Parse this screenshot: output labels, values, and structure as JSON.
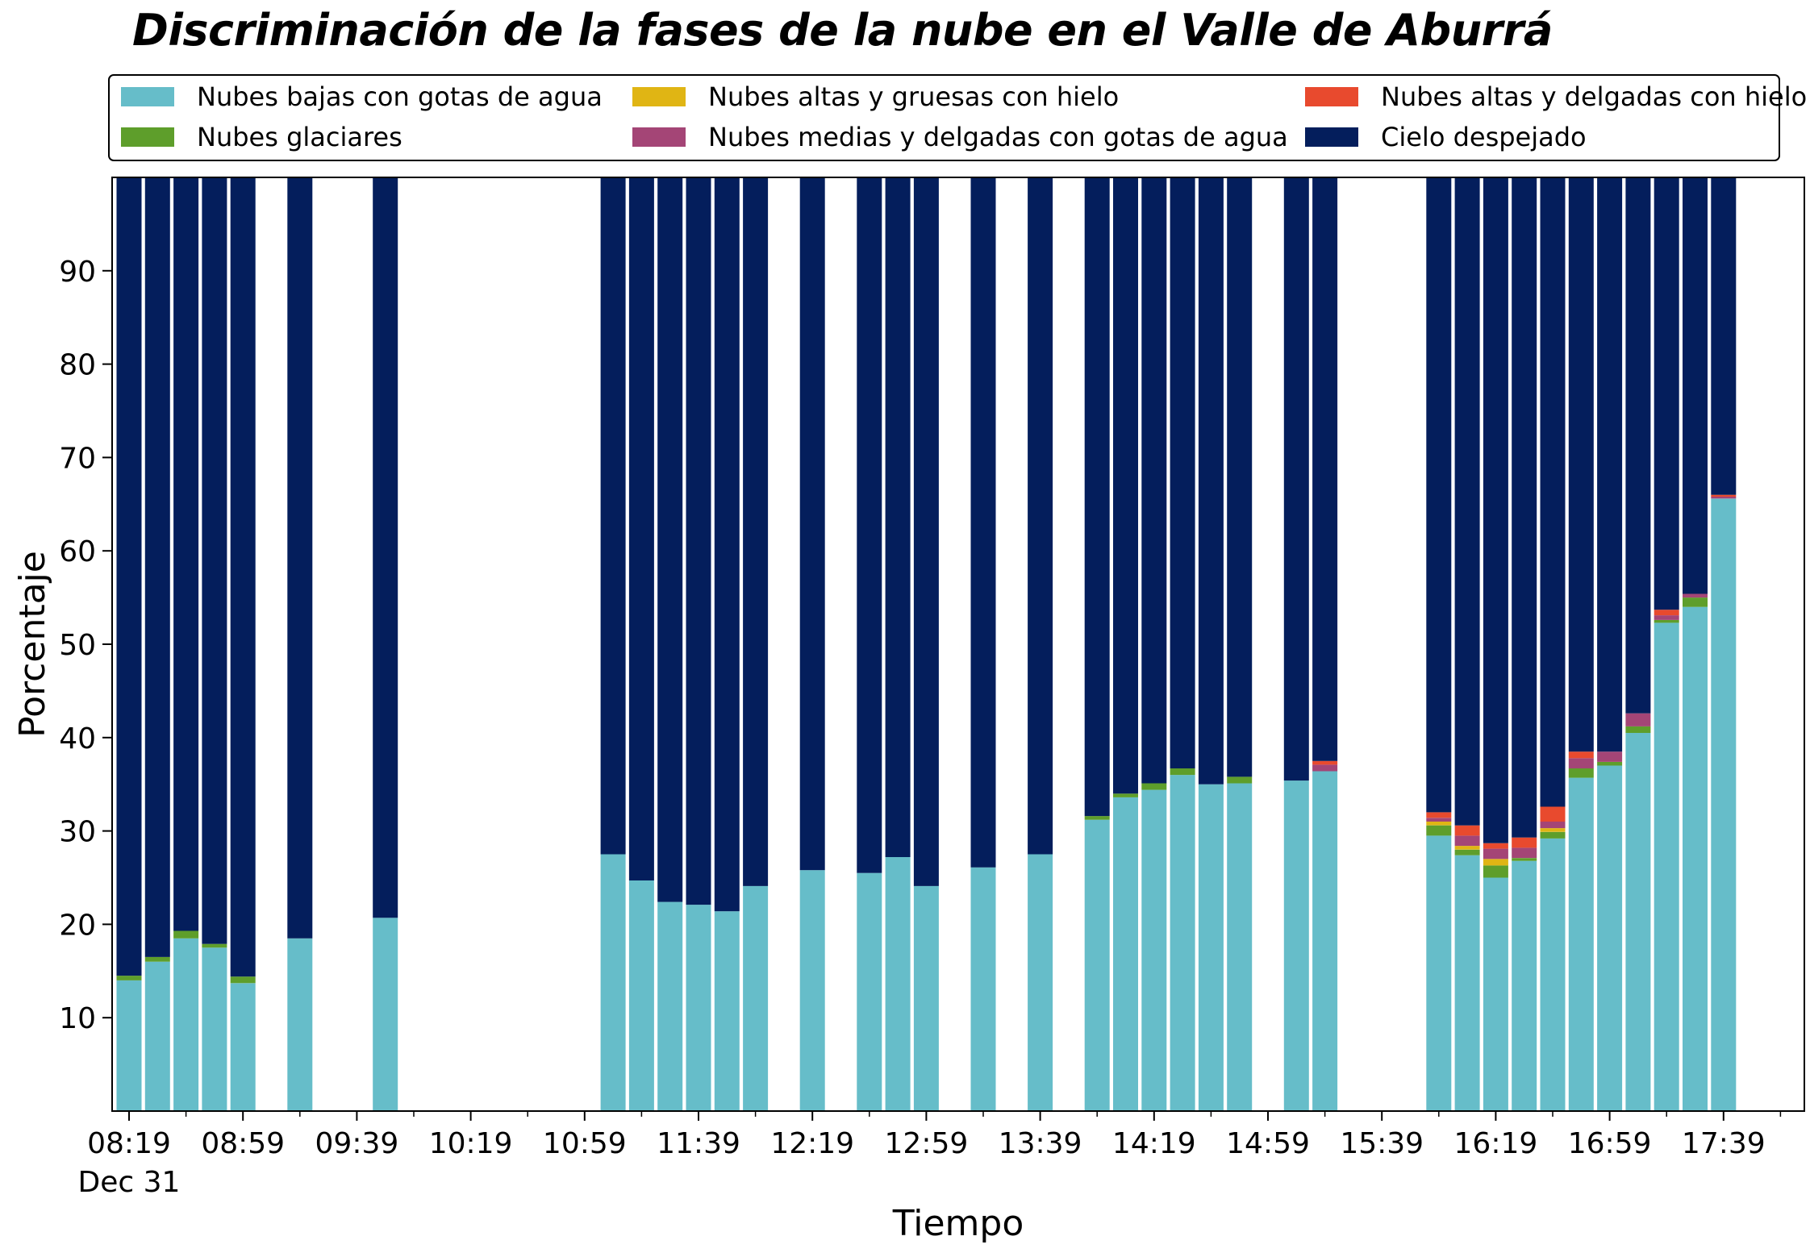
{
  "chart_data": {
    "type": "bar",
    "stacked": true,
    "title": "Discriminación de la fases de la nube en el Valle de Aburrá",
    "xlabel": "Tiempo",
    "ylabel": "Porcentaje",
    "ylim": [
      0,
      100
    ],
    "yticks": [
      10,
      20,
      30,
      40,
      50,
      60,
      70,
      80,
      90
    ],
    "x_tick_labels": [
      "08:19",
      "08:59",
      "09:39",
      "10:19",
      "10:59",
      "11:39",
      "12:19",
      "12:59",
      "13:39",
      "14:19",
      "14:59",
      "15:39",
      "16:19",
      "16:59",
      "17:39"
    ],
    "x_date_label": "Dec 31",
    "legend_position": "top",
    "grid": false,
    "x": [
      "08:19",
      "08:29",
      "08:39",
      "08:49",
      "08:59",
      "09:19",
      "09:49",
      "11:09",
      "11:19",
      "11:29",
      "11:39",
      "11:49",
      "11:59",
      "12:19",
      "12:39",
      "12:49",
      "12:59",
      "13:19",
      "13:39",
      "13:59",
      "14:09",
      "14:19",
      "14:29",
      "14:39",
      "14:49",
      "15:09",
      "15:19",
      "15:59",
      "16:09",
      "16:19",
      "16:29",
      "16:39",
      "16:49",
      "16:59",
      "17:09",
      "17:19",
      "17:29",
      "17:39"
    ],
    "series": [
      {
        "name": "Nubes bajas con gotas de agua",
        "color": "#66BDC9",
        "values": [
          14.0,
          16.0,
          18.5,
          17.5,
          13.7,
          18.5,
          20.7,
          27.5,
          24.7,
          22.4,
          22.1,
          21.4,
          24.1,
          25.8,
          25.5,
          27.2,
          24.1,
          26.1,
          27.5,
          31.2,
          33.6,
          34.4,
          36.0,
          35.0,
          35.1,
          35.4,
          36.4,
          29.5,
          27.4,
          25.0,
          26.8,
          29.2,
          35.7,
          37.0,
          40.5,
          52.3,
          54.0,
          65.6
        ]
      },
      {
        "name": "Nubes glaciares",
        "color": "#5E9E2B",
        "values": [
          0.5,
          0.5,
          0.8,
          0.4,
          0.7,
          0,
          0,
          0,
          0,
          0,
          0,
          0,
          0,
          0,
          0,
          0,
          0,
          0,
          0,
          0.4,
          0.4,
          0.7,
          0.7,
          0,
          0.7,
          0,
          0,
          1.1,
          0.6,
          1.3,
          0.3,
          0.7,
          1.0,
          0.4,
          0.7,
          0.3,
          1.0,
          0
        ]
      },
      {
        "name": "Nubes altas y gruesas con hielo",
        "color": "#E0B514",
        "values": [
          0,
          0,
          0,
          0,
          0,
          0,
          0,
          0,
          0,
          0,
          0,
          0,
          0,
          0,
          0,
          0,
          0,
          0,
          0,
          0,
          0,
          0,
          0,
          0,
          0,
          0,
          0,
          0.4,
          0.4,
          0.7,
          0,
          0.4,
          0,
          0,
          0,
          0,
          0,
          0
        ]
      },
      {
        "name": "Nubes medias y delgadas con gotas de agua",
        "color": "#A44576",
        "values": [
          0,
          0,
          0,
          0,
          0,
          0,
          0,
          0,
          0,
          0,
          0,
          0,
          0,
          0,
          0,
          0,
          0,
          0,
          0,
          0,
          0,
          0,
          0,
          0,
          0,
          0,
          0.7,
          0.4,
          1.1,
          1.1,
          1.1,
          0.7,
          1.1,
          1.1,
          1.4,
          0.5,
          0.4,
          0.2
        ]
      },
      {
        "name": "Nubes altas y delgadas con hielo",
        "color": "#E84A2E",
        "values": [
          0,
          0,
          0,
          0,
          0,
          0,
          0,
          0,
          0,
          0,
          0,
          0,
          0,
          0,
          0,
          0,
          0,
          0,
          0,
          0,
          0,
          0,
          0,
          0,
          0,
          0,
          0.4,
          0.6,
          1.1,
          0.6,
          1.1,
          1.6,
          0.7,
          0,
          0,
          0.6,
          0,
          0.2
        ]
      },
      {
        "name": "Cielo despejado",
        "color": "#041E5C",
        "values": [
          85.5,
          83.5,
          80.7,
          82.1,
          85.6,
          81.5,
          79.3,
          72.5,
          75.3,
          77.6,
          77.9,
          78.6,
          75.9,
          74.2,
          74.5,
          72.8,
          75.9,
          73.9,
          72.5,
          68.4,
          66.0,
          64.9,
          63.3,
          65.0,
          64.2,
          64.6,
          62.5,
          68.0,
          69.4,
          71.3,
          70.7,
          67.4,
          61.5,
          61.5,
          57.4,
          46.3,
          44.6,
          34.0
        ]
      }
    ]
  }
}
